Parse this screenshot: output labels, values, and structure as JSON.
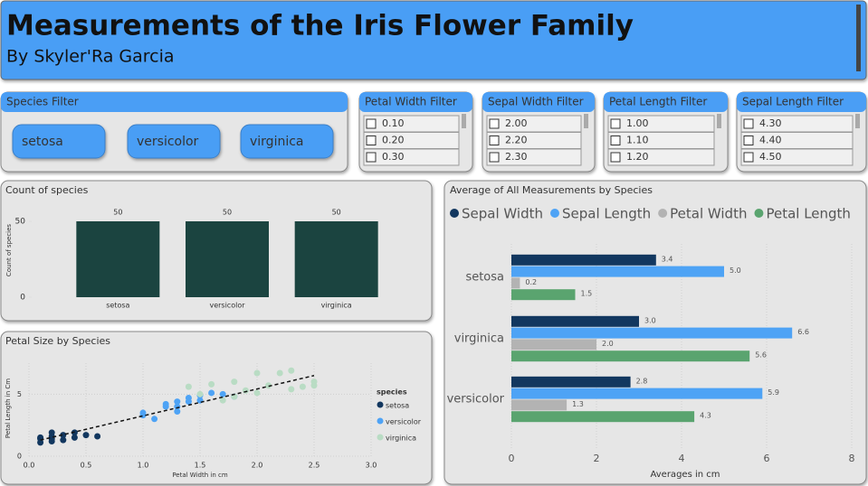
{
  "header": {
    "title": "Measurements of the Iris Flower Family",
    "subtitle": "By Skyler'Ra Garcia"
  },
  "filters": [
    {
      "title": "Species Filter",
      "items": [
        "setosa",
        "versicolor",
        "virginica"
      ]
    },
    {
      "title": "Petal Width Filter",
      "items": [
        "0.10",
        "0.20",
        "0.30"
      ]
    },
    {
      "title": "Sepal Width Filter",
      "items": [
        "2.00",
        "2.20",
        "2.30"
      ]
    },
    {
      "title": "Petal Length Filter",
      "items": [
        "1.00",
        "1.10",
        "1.20"
      ]
    },
    {
      "title": "Sepal Length Filter",
      "items": [
        "4.30",
        "4.40",
        "4.50"
      ]
    }
  ],
  "chart_data": [
    {
      "type": "bar",
      "title": "Count of species",
      "y_label": "Count of species",
      "categories": [
        "setosa",
        "versicolor",
        "virginica"
      ],
      "values": [
        50,
        50,
        50
      ],
      "color": "#1b4440",
      "ylim": [
        0,
        50
      ],
      "yticks": [
        0,
        50
      ]
    },
    {
      "type": "bar",
      "orientation": "horizontal",
      "title": "Average of All Measurements by Species",
      "x_label": "Averages in cm",
      "categories": [
        "setosa",
        "virginica",
        "versicolor"
      ],
      "series": [
        {
          "name": "Sepal Width",
          "color": "#12375f",
          "values": [
            3.4,
            3.0,
            2.8
          ],
          "value_labels": [
            "3.4",
            "3.0",
            "2.8"
          ]
        },
        {
          "name": "Sepal Length",
          "color": "#4ea3f5",
          "values": [
            5.0,
            6.6,
            5.9
          ],
          "value_labels": [
            "5.0",
            "6.6",
            "5.9"
          ]
        },
        {
          "name": "Petal Width",
          "color": "#b3b3b3",
          "values": [
            0.2,
            2.0,
            1.3
          ],
          "value_labels": [
            "0.2",
            "2.0",
            "1.3"
          ]
        },
        {
          "name": "Petal Length",
          "color": "#5aa46f",
          "values": [
            1.5,
            5.6,
            4.3
          ],
          "value_labels": [
            "1.5",
            "5.6",
            "4.3"
          ]
        }
      ],
      "xlim": [
        0,
        8
      ],
      "xticks": [
        0,
        2,
        4,
        6,
        8
      ],
      "grid": true,
      "legend": "top"
    },
    {
      "type": "scatter",
      "title": "Petal Size by Species",
      "x_label": "Petal Width in cm",
      "y_label": "Petal Length in Cm",
      "legend_title": "species",
      "legend": "right",
      "grid": true,
      "xlim": [
        0,
        3.0
      ],
      "xticks": [
        {
          "value": 0,
          "label": "0.0"
        },
        0.5,
        {
          "value": 1,
          "label": "1.0"
        },
        1.5,
        {
          "value": 2,
          "label": "2.0"
        },
        2.5,
        {
          "value": 3,
          "label": "3.0"
        }
      ],
      "ylim": [
        0,
        7.5
      ],
      "yticks": [
        0,
        5
      ],
      "series": [
        {
          "name": "setosa",
          "color": "#12375f",
          "x": [
            0.1,
            0.1,
            0.2,
            0.2,
            0.2,
            0.3,
            0.3,
            0.4,
            0.4,
            0.5,
            0.6,
            0.1,
            0.2
          ],
          "values": [
            1.4,
            1.5,
            1.4,
            1.6,
            1.2,
            1.3,
            1.7,
            1.5,
            1.9,
            1.7,
            1.6,
            1.1,
            1.9
          ]
        },
        {
          "name": "versicolor",
          "color": "#4ea3f5",
          "x": [
            1.0,
            1.0,
            1.1,
            1.2,
            1.3,
            1.3,
            1.4,
            1.5,
            1.5,
            1.6,
            1.7,
            1.8,
            1.2,
            1.4,
            1.3
          ],
          "values": [
            3.5,
            3.3,
            3.0,
            4.0,
            4.0,
            4.4,
            4.7,
            4.5,
            4.9,
            5.1,
            5.0,
            4.8,
            4.2,
            4.4,
            3.6
          ]
        },
        {
          "name": "virginica",
          "color": "#b9dcc4",
          "x": [
            1.4,
            1.5,
            1.6,
            1.8,
            1.8,
            1.9,
            2.0,
            2.0,
            2.1,
            2.2,
            2.3,
            2.3,
            2.4,
            2.5,
            2.5,
            1.7
          ],
          "values": [
            5.6,
            5.0,
            5.8,
            4.8,
            6.0,
            5.3,
            5.1,
            6.7,
            5.7,
            6.7,
            6.9,
            5.4,
            5.6,
            6.0,
            5.7,
            4.5
          ]
        }
      ],
      "trendline": {
        "color": "#111111",
        "x": [
          0.1,
          2.5
        ],
        "values": [
          1.3,
          6.5
        ]
      }
    }
  ]
}
